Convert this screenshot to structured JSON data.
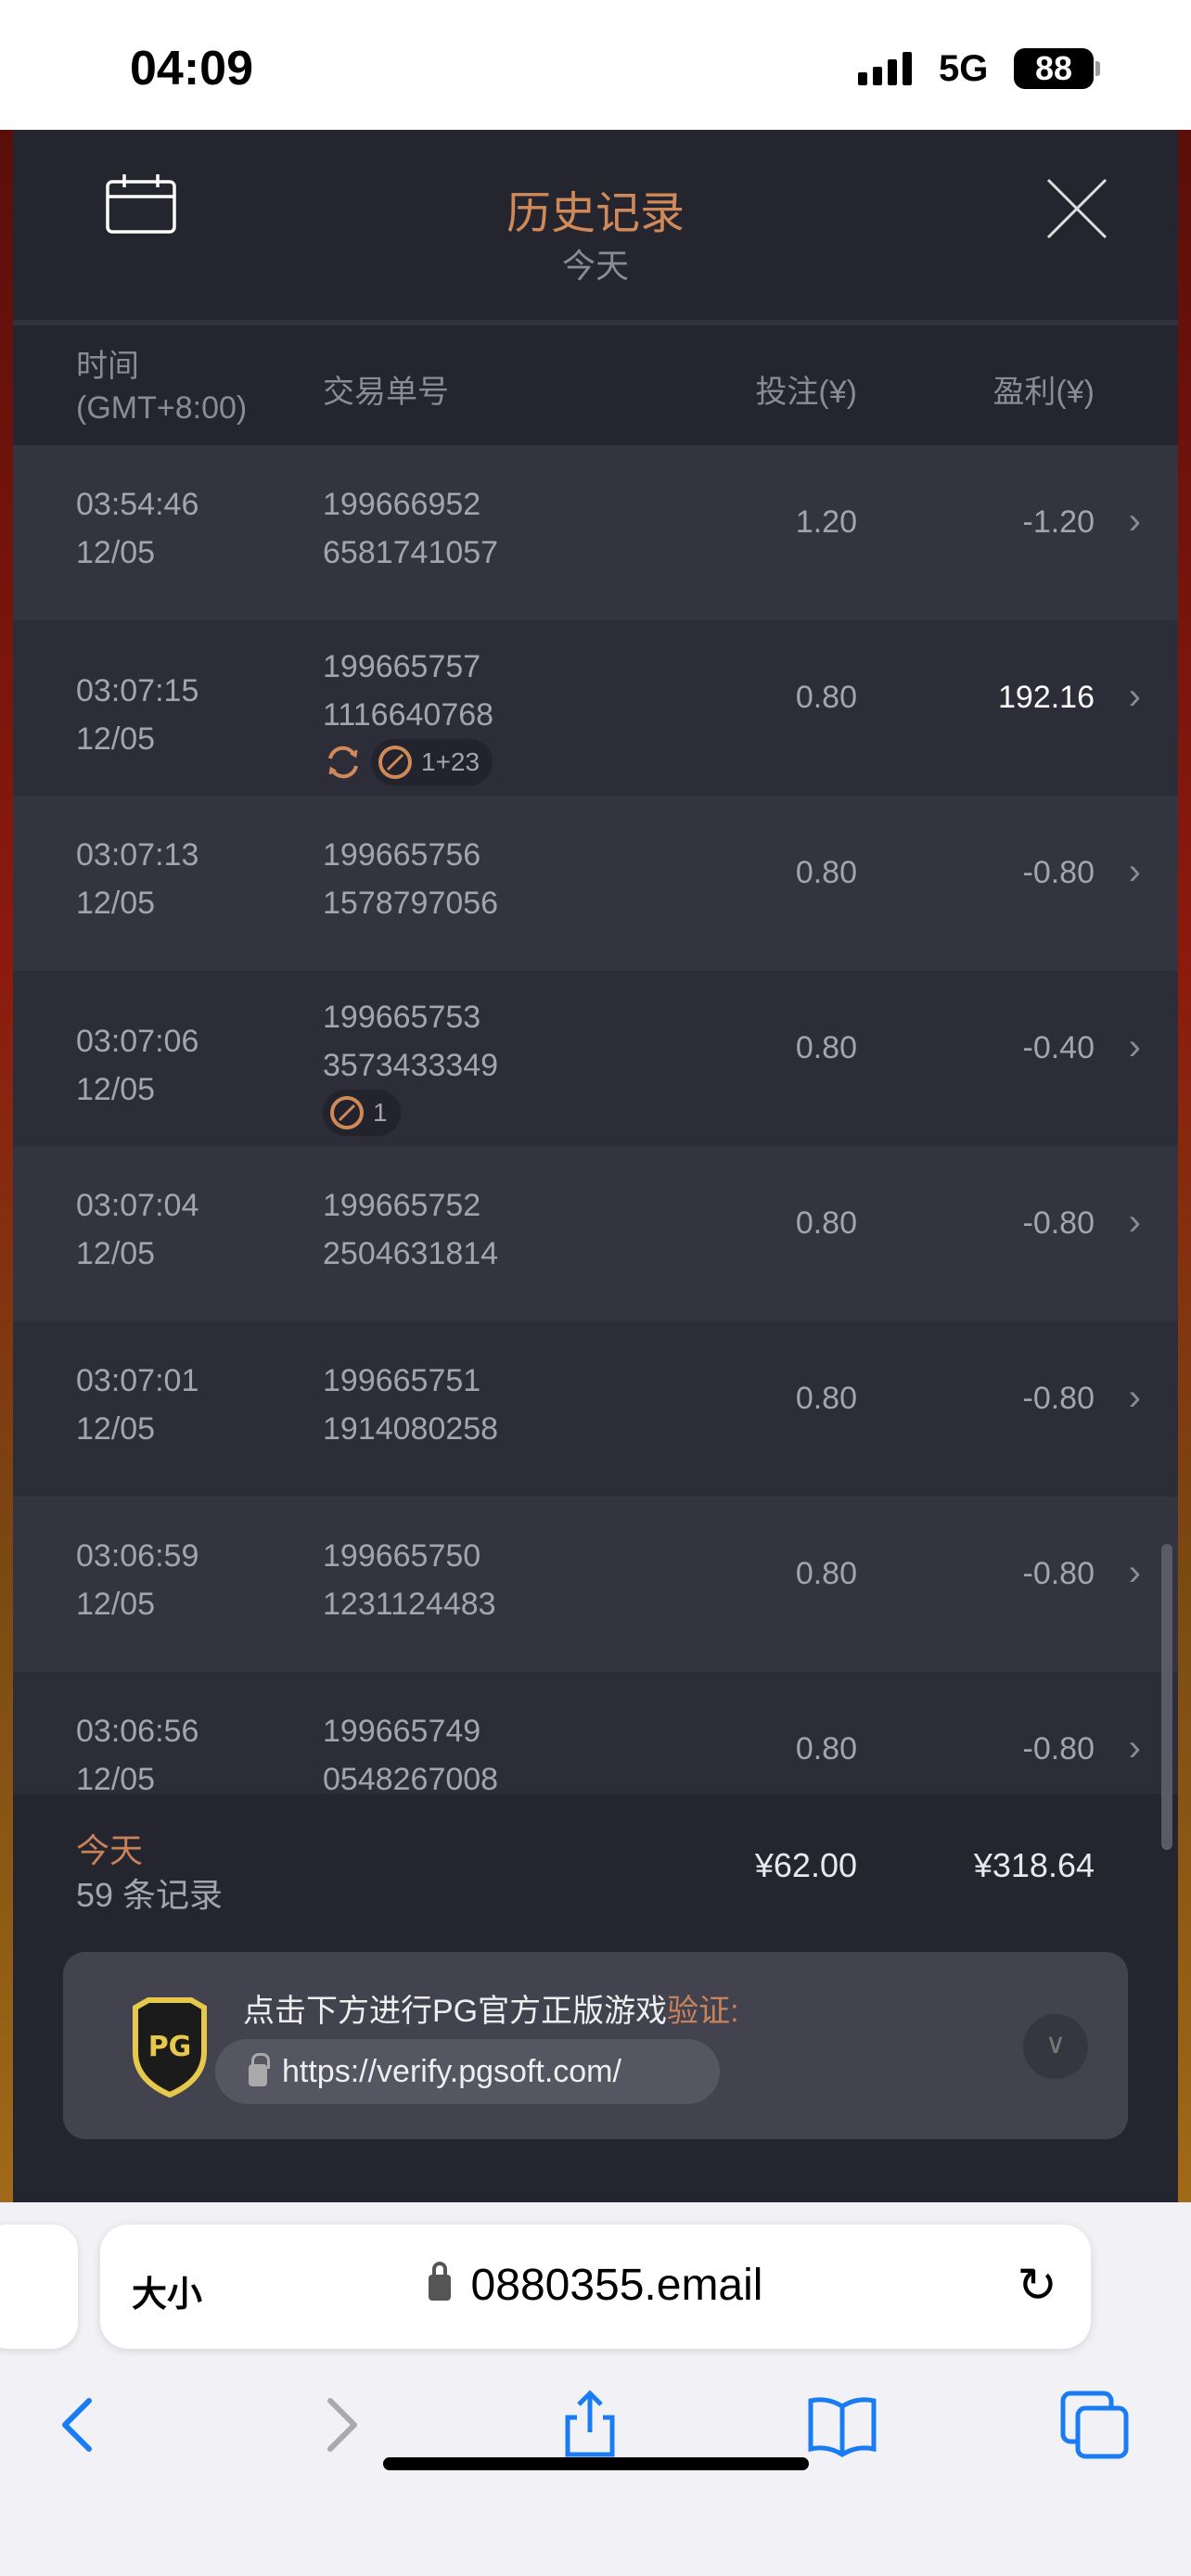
{
  "status_bar": {
    "time": "04:09",
    "network": "5G",
    "battery": "88"
  },
  "modal": {
    "title": "历史记录",
    "subtitle": "今天",
    "columns": {
      "time": "时间",
      "timezone": "(GMT+8:00)",
      "order": "交易单号",
      "bet": "投注(¥)",
      "profit": "盈利(¥)"
    },
    "rows": [
      {
        "time": "03:54:46",
        "date": "12/05",
        "order_a": "199666952",
        "order_b": "6581741057",
        "bet": "1.20",
        "profit": "-1.20"
      },
      {
        "time": "03:07:15",
        "date": "12/05",
        "order_a": "199665757",
        "order_b": "1116640768",
        "bet": "0.80",
        "profit": "192.16",
        "win": true,
        "respin": true,
        "free_spins": "1+23"
      },
      {
        "time": "03:07:13",
        "date": "12/05",
        "order_a": "199665756",
        "order_b": "1578797056",
        "bet": "0.80",
        "profit": "-0.80"
      },
      {
        "time": "03:07:06",
        "date": "12/05",
        "order_a": "199665753",
        "order_b": "3573433349",
        "bet": "0.80",
        "profit": "-0.40",
        "free_spins": "1"
      },
      {
        "time": "03:07:04",
        "date": "12/05",
        "order_a": "199665752",
        "order_b": "2504631814",
        "bet": "0.80",
        "profit": "-0.80"
      },
      {
        "time": "03:07:01",
        "date": "12/05",
        "order_a": "199665751",
        "order_b": "1914080258",
        "bet": "0.80",
        "profit": "-0.80"
      },
      {
        "time": "03:06:59",
        "date": "12/05",
        "order_a": "199665750",
        "order_b": "1231124483",
        "bet": "0.80",
        "profit": "-0.80"
      },
      {
        "time": "03:06:56",
        "date": "12/05",
        "order_a": "199665749",
        "order_b": "0548267008",
        "bet": "0.80",
        "profit": "-0.80"
      }
    ],
    "footer": {
      "period": "今天",
      "count": "59 条记录",
      "total_bet": "¥62.00",
      "total_profit": "¥318.64"
    },
    "verify": {
      "text": "点击下方进行PG官方正版游戏",
      "highlight": "验证:",
      "url": "https://verify.pgsoft.com/",
      "logo": "PG"
    }
  },
  "browser": {
    "text_size": "大小",
    "domain": "0880355.email"
  },
  "colors": {
    "accent": "#d08a5a",
    "modal_bg": "#24252f",
    "safari_blue": "#1a7cf5"
  }
}
